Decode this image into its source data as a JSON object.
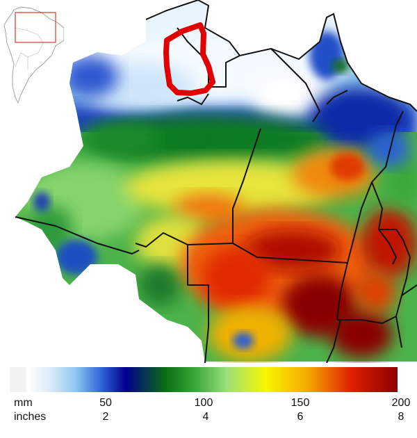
{
  "legend": {
    "units_mm": "mm",
    "units_inches": "inches",
    "ticks": [
      {
        "mm": "50",
        "in": "2"
      },
      {
        "mm": "100",
        "in": "4"
      },
      {
        "mm": "150",
        "in": "6"
      },
      {
        "mm": "200",
        "in": "8"
      }
    ],
    "colors": [
      "#f2f2f2",
      "#ffffff",
      "#8ec8f0",
      "#2a5fd6",
      "#00008c",
      "#0a6d14",
      "#3aa83a",
      "#9be07a",
      "#f7f700",
      "#f5a800",
      "#e02000",
      "#8b0000"
    ]
  },
  "map": {
    "highlight_color": "#e00000",
    "inset_box_color": "#e03030"
  }
}
